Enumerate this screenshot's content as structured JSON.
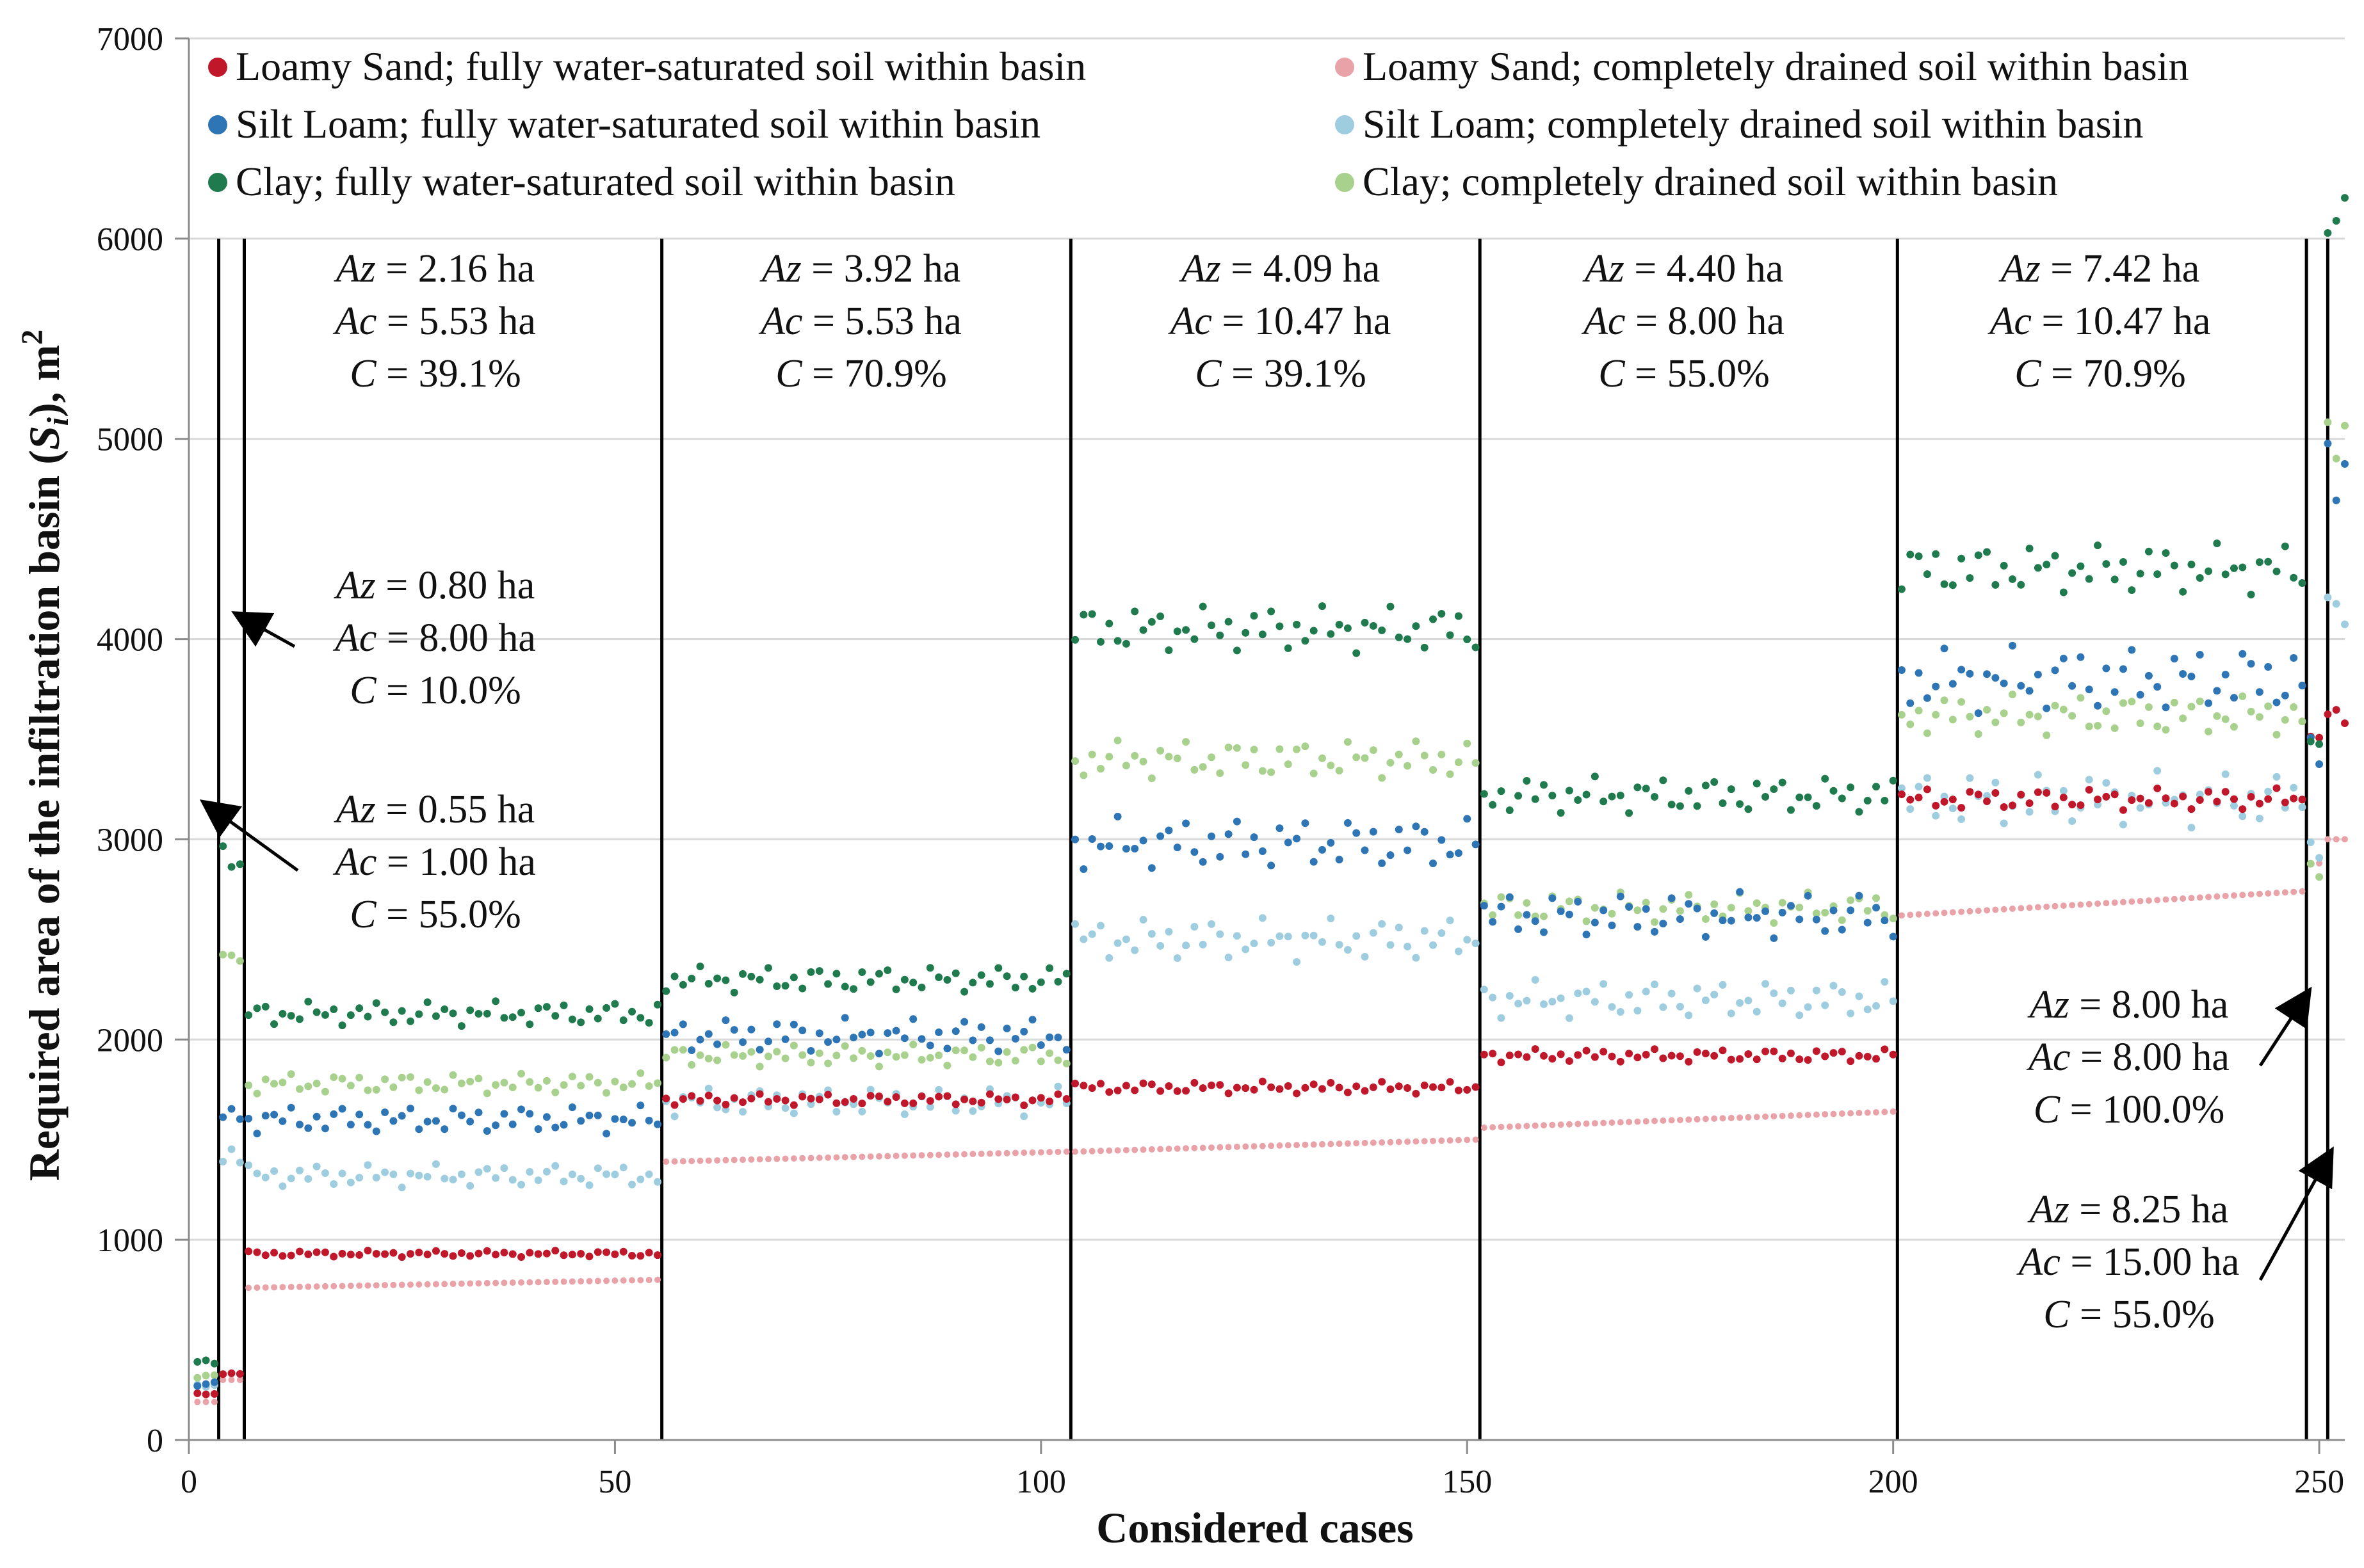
{
  "chart_data": {
    "type": "scatter",
    "title": "",
    "xlabel": "Considered cases",
    "ylabel": "Required area of the infiltration basin (S_i), m^2",
    "ylabel_parts": {
      "main": "Required area of the infiltration basin (",
      "sym": "S",
      "sub": "i",
      "close": "), m",
      "sup": "2"
    },
    "xlim": [
      0,
      253
    ],
    "ylim": [
      0,
      7000
    ],
    "xticks": [
      0,
      50,
      100,
      150,
      200,
      250
    ],
    "yticks": [
      0,
      1000,
      2000,
      3000,
      4000,
      5000,
      6000,
      7000
    ],
    "grid": "horizontal",
    "legend_position": "top",
    "series": [
      {
        "name": "Loamy Sand; fully water-saturated soil within basin",
        "color": "#c0182a",
        "soil": "ls",
        "state": "sat"
      },
      {
        "name": "Silt Loam; fully water-saturated soil within basin",
        "color": "#2e75b6",
        "soil": "sl",
        "state": "sat"
      },
      {
        "name": "Clay; fully water-saturated soil within basin",
        "color": "#1f7a4d",
        "soil": "cl",
        "state": "sat"
      },
      {
        "name": "Loamy Sand; completely drained soil within basin",
        "color": "#e8a2a8",
        "soil": "ls",
        "state": "dry"
      },
      {
        "name": "Silt Loam; completely drained soil within basin",
        "color": "#9fcde0",
        "soil": "sl",
        "state": "dry"
      },
      {
        "name": "Clay; completely drained soil within basin",
        "color": "#a9d18e",
        "soil": "cl",
        "state": "dry"
      }
    ],
    "groups": [
      {
        "x_start": 1,
        "x_end": 3,
        "Az": "0.55 ha",
        "Ac": "1.00 ha",
        "C": "55.0%",
        "ls_sat": 230,
        "ls_dry": 190,
        "sl_sat": 280,
        "sl_dry": 270,
        "cl_sat": 390,
        "cl_dry": 320,
        "dry_trend": 0
      },
      {
        "x_start": 4,
        "x_end": 6,
        "Az": "0.80 ha",
        "Ac": "8.00 ha",
        "C": "10.0%",
        "ls_sat": 330,
        "ls_dry": 300,
        "sl_sat": 1640,
        "sl_dry": 1400,
        "cl_sat": 2880,
        "cl_dry": 2430,
        "dry_trend": 0
      },
      {
        "x_start": 7,
        "x_end": 55,
        "Az": "2.16 ha",
        "Ac": "5.53 ha",
        "C": "39.1%",
        "ls_sat": 930,
        "ls_dry": 760,
        "sl_sat": 1600,
        "sl_dry": 1320,
        "cl_sat": 2130,
        "cl_dry": 1780,
        "dry_trend": 40
      },
      {
        "x_start": 56,
        "x_end": 103,
        "Az": "3.92 ha",
        "Ac": "5.53 ha",
        "C": "70.9%",
        "ls_sat": 1700,
        "ls_dry": 1390,
        "sl_sat": 2020,
        "sl_dry": 1690,
        "cl_sat": 2300,
        "cl_dry": 1920,
        "dry_trend": 50
      },
      {
        "x_start": 104,
        "x_end": 151,
        "Az": "4.09 ha",
        "Ac": "10.47 ha",
        "C": "39.1%",
        "ls_sat": 1760,
        "ls_dry": 1440,
        "sl_sat": 2980,
        "sl_dry": 2500,
        "cl_sat": 4050,
        "cl_dry": 3400,
        "dry_trend": 60
      },
      {
        "x_start": 152,
        "x_end": 200,
        "Az": "4.40 ha",
        "Ac": "8.00 ha",
        "C": "55.0%",
        "ls_sat": 1920,
        "ls_dry": 1560,
        "sl_sat": 2620,
        "sl_dry": 2200,
        "cl_sat": 3220,
        "cl_dry": 2660,
        "dry_trend": 80
      },
      {
        "x_start": 201,
        "x_end": 248,
        "Az": "7.42 ha",
        "Ac": "10.47 ha",
        "C": "70.9%",
        "ls_sat": 3200,
        "ls_dry": 2620,
        "sl_sat": 3800,
        "sl_dry": 3200,
        "cl_sat": 4350,
        "cl_dry": 3620,
        "dry_trend": 120
      },
      {
        "x_start": 249,
        "x_end": 250,
        "Az": "8.00 ha",
        "Ac": "8.00 ha",
        "C": "100.0%",
        "ls_sat": 3480,
        "ls_dry": 2880,
        "sl_sat": 3480,
        "sl_dry": 2880,
        "cl_sat": 3480,
        "cl_dry": 2880,
        "dry_trend": 0
      },
      {
        "x_start": 251,
        "x_end": 253,
        "Az": "8.25 ha",
        "Ac": "15.00 ha",
        "C": "55.0%",
        "ls_sat": 3600,
        "ls_dry": 3000,
        "sl_sat": 4900,
        "sl_dry": 4100,
        "cl_sat": 6050,
        "cl_dry": 5050,
        "dry_trend": 0
      }
    ],
    "separators_x": [
      3.5,
      6.5,
      55.5,
      103.5,
      151.5,
      200.5,
      248.5,
      251.0
    ],
    "annotation_labels": {
      "az": "Az",
      "ac": "Ac",
      "c": "C",
      "eq": " = "
    }
  }
}
